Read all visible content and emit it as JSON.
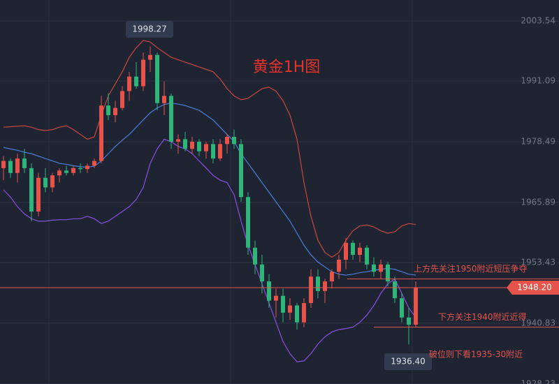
{
  "chart_data": {
    "type": "candlestick",
    "title": "黄金1H图",
    "open": [
      1973,
      1974.5,
      1972,
      1975,
      1973,
      1964,
      1971,
      1969,
      1971.5,
      1972.5,
      1972,
      1973,
      1972.8,
      1973.5,
      1974.5,
      1986,
      1984,
      1985.5,
      1989,
      1992,
      1990,
      1995.5,
      1996.5,
      1986.5,
      1988,
      1978.5,
      1979,
      1977,
      1978.5,
      1976.5,
      1978,
      1975,
      1978,
      1979.5,
      1978,
      1967,
      1956.5,
      1953,
      1949.5,
      1945.5,
      1946.5,
      1943,
      1944.5,
      1941,
      1945,
      1950.5,
      1947.5,
      1949.5,
      1951.5,
      1954,
      1957.5,
      1955,
      1956.5,
      1953,
      1951.5,
      1953,
      1949.5,
      1946,
      1942,
      1940.5
    ],
    "high": [
      1975.5,
      1975,
      1976,
      1977,
      1974,
      1972,
      1973,
      1972,
      1973,
      1973.5,
      1973.5,
      1974,
      1974,
      1975,
      1988,
      1988.5,
      1987,
      1990,
      1993,
      1995,
      1997,
      1998.27,
      1997,
      1991,
      1988.5,
      1980,
      1980.5,
      1979.5,
      1979,
      1978.5,
      1979,
      1979,
      1980,
      1981,
      1979,
      1968,
      1958,
      1955,
      1951,
      1948,
      1948,
      1946,
      1945,
      1946,
      1952,
      1952,
      1950,
      1952,
      1955,
      1958.5,
      1958,
      1957.5,
      1957,
      1954.5,
      1954,
      1953.5,
      1950.5,
      1947,
      1944,
      1949.5
    ],
    "low": [
      1970.5,
      1971,
      1970,
      1972,
      1962,
      1963,
      1968,
      1968,
      1970,
      1971.5,
      1971.5,
      1972,
      1972,
      1973,
      1974,
      1983,
      1982.5,
      1985,
      1987,
      1989.5,
      1989,
      1993,
      1985,
      1984,
      1977,
      1976,
      1976.5,
      1976,
      1975.5,
      1975,
      1974,
      1974.5,
      1976,
      1977,
      1966,
      1955,
      1951,
      1947,
      1944,
      1942,
      1941,
      1941.5,
      1939.5,
      1940,
      1944,
      1946,
      1945,
      1948,
      1950,
      1952,
      1954,
      1953.5,
      1952,
      1950.5,
      1950,
      1948.5,
      1945,
      1941,
      1936.4,
      1940
    ],
    "close": [
      1974.5,
      1972,
      1975,
      1973,
      1964,
      1971,
      1969,
      1971.5,
      1972.5,
      1972,
      1973,
      1972.8,
      1973.5,
      1974.5,
      1986,
      1984,
      1985.5,
      1989,
      1992,
      1990,
      1995.5,
      1996.5,
      1986.5,
      1988,
      1978.5,
      1979,
      1977,
      1978.5,
      1976.5,
      1978,
      1975,
      1978,
      1979.5,
      1978,
      1967,
      1956.5,
      1953,
      1949.5,
      1945.5,
      1946.5,
      1943,
      1944.5,
      1941,
      1945,
      1950.5,
      1947.5,
      1949.5,
      1951.5,
      1954,
      1957.5,
      1955,
      1956.5,
      1953,
      1951.5,
      1953,
      1949.5,
      1946,
      1942,
      1940.5,
      1948.2
    ],
    "up_color": "#e5534b",
    "down_color": "#2fb57a",
    "bands": [
      {
        "color": "#c9463d",
        "values": [
          1981.5,
          1981.6,
          1981.7,
          1981.8,
          1981.5,
          1981,
          1980.8,
          1981,
          1981.5,
          1981.8,
          1981,
          1980,
          1979,
          1979.5,
          1984,
          1988,
          1990.5,
          1993,
          1996,
          1998,
          1999.5,
          1999.2,
          1998,
          1997,
          1996,
          1995.5,
          1995,
          1994.5,
          1994,
          1993.5,
          1993,
          1991.5,
          1989.5,
          1988,
          1987.2,
          1987.5,
          1988.5,
          1989.5,
          1989.8,
          1989,
          1987,
          1984,
          1979,
          1970,
          1963,
          1958,
          1955.5,
          1954.5,
          1955.5,
          1958,
          1960,
          1961,
          1961.2,
          1960.8,
          1960,
          1959.5,
          1959.8,
          1961,
          1961.5,
          1961.3
        ]
      },
      {
        "color": "#4a7fd6",
        "values": [
          1977.3,
          1977,
          1976.7,
          1976.3,
          1976,
          1975.5,
          1975,
          1974.5,
          1974,
          1973.8,
          1973.5,
          1973.3,
          1973.2,
          1973.4,
          1974.5,
          1976,
          1977.5,
          1978.8,
          1980,
          1981.5,
          1983,
          1984.5,
          1985.5,
          1986.2,
          1986.5,
          1986.3,
          1986,
          1985.5,
          1985,
          1984,
          1983,
          1981.5,
          1980,
          1978.5,
          1976,
          1974,
          1972,
          1970,
          1968,
          1966,
          1964,
          1962,
          1959.5,
          1957,
          1955,
          1953.5,
          1952.5,
          1951.5,
          1951,
          1950.8,
          1951,
          1951.3,
          1951.5,
          1951.8,
          1952,
          1952.2,
          1952,
          1951.5,
          1951,
          1950.8
        ]
      },
      {
        "color": "#8a4fe0",
        "values": [
          1968.5,
          1967,
          1965,
          1963.5,
          1962.5,
          1962,
          1962,
          1962.2,
          1962.3,
          1962.3,
          1962.5,
          1962.5,
          1963,
          1962.5,
          1961.5,
          1962,
          1963,
          1964,
          1965,
          1966.5,
          1969,
          1974,
          1977,
          1979,
          1978.5,
          1977.5,
          1977,
          1976,
          1974.5,
          1973,
          1971.5,
          1970.5,
          1970,
          1967.5,
          1962,
          1957,
          1953,
          1949,
          1945,
          1941,
          1937,
          1934.5,
          1932.8,
          1933,
          1934.5,
          1936.5,
          1938,
          1939,
          1939.5,
          1939.7,
          1940,
          1941,
          1942.5,
          1944.5,
          1947,
          1949,
          1950,
          1947,
          1944,
          1942
        ]
      }
    ],
    "ylim": [
      1928.2,
      2007.9
    ],
    "yticks": [
      {
        "value": 2003.54,
        "label": "2003.54"
      },
      {
        "value": 1991.09,
        "label": "1991.09"
      },
      {
        "value": 1978.49,
        "label": "1978.49"
      },
      {
        "value": 1965.89,
        "label": "1965.89"
      },
      {
        "value": 1953.43,
        "label": "1953.43"
      },
      {
        "value": 1940.83,
        "label": "1940.83"
      },
      {
        "value": 1928.23,
        "label": "1928.23"
      }
    ],
    "grid": true,
    "last_price": {
      "value": 1948.2,
      "label": "1948.20"
    },
    "high_label": "1998.27",
    "low_label": "1936.40",
    "annotations": [
      {
        "text": "上方先关注1950附近短压争夺",
        "level": 1950
      },
      {
        "text": "下方关注1940附近近得",
        "level": 1940
      },
      {
        "text": "破位则下看1935-30附近"
      }
    ]
  }
}
